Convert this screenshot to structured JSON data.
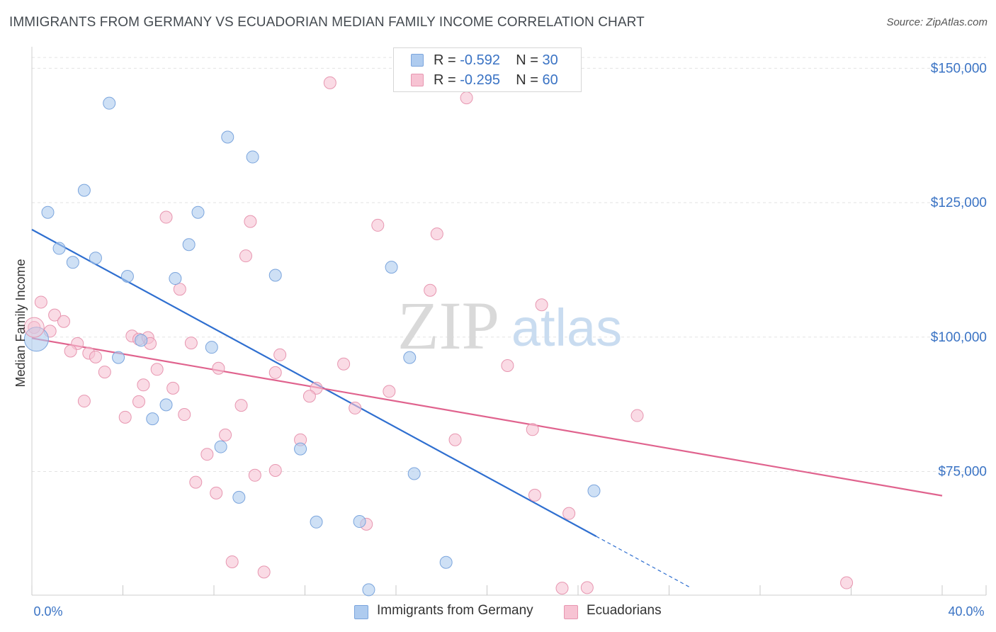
{
  "title": "IMMIGRANTS FROM GERMANY VS ECUADORIAN MEDIAN FAMILY INCOME CORRELATION CHART",
  "source": "Source: ZipAtlas.com",
  "watermark": {
    "zip": "ZIP",
    "atlas": "atlas"
  },
  "colors": {
    "blue_fill": "#aecbef",
    "blue_stroke": "#7ba5dd",
    "blue_line": "#2f6fd0",
    "pink_fill": "#f7c3d3",
    "pink_stroke": "#e796b0",
    "pink_line": "#e0638e",
    "axis_text": "#3a73c4",
    "grid": "#e3e3e3"
  },
  "legend": {
    "series": [
      {
        "r_label": "R = ",
        "r_value": "-0.592",
        "n_label": "N = ",
        "n_value": "30"
      },
      {
        "r_label": "R = ",
        "r_value": "-0.295",
        "n_label": "N = ",
        "n_value": "60"
      }
    ]
  },
  "chart_data": {
    "type": "scatter",
    "title": "IMMIGRANTS FROM GERMANY VS ECUADORIAN MEDIAN FAMILY INCOME CORRELATION CHART",
    "xlabel": "",
    "ylabel": "Median Family Income",
    "xlim": [
      0,
      40
    ],
    "ylim": [
      52000,
      154000
    ],
    "x_tick_labels": [
      "0.0%",
      "40.0%"
    ],
    "y_ticks": [
      75000,
      100000,
      125000,
      150000
    ],
    "y_tick_labels": [
      "$75,000",
      "$100,000",
      "$125,000",
      "$150,000"
    ],
    "legend_placement": "bottom-center",
    "series": [
      {
        "name": "Immigrants from Germany",
        "color": "blue",
        "r": -0.592,
        "n": 30,
        "trend": {
          "x0": 0,
          "y0": 120000,
          "x1": 28.9,
          "y1": 53500,
          "solid_until_x": 24.8
        },
        "points": [
          [
            3.4,
            143500
          ],
          [
            8.6,
            137200
          ],
          [
            9.7,
            133500
          ],
          [
            2.3,
            127300
          ],
          [
            0.7,
            123200
          ],
          [
            7.3,
            123200
          ],
          [
            6.9,
            117200
          ],
          [
            1.2,
            116500
          ],
          [
            2.8,
            114700
          ],
          [
            1.8,
            113900
          ],
          [
            15.8,
            113000
          ],
          [
            4.2,
            111300
          ],
          [
            6.3,
            110900
          ],
          [
            10.7,
            111500
          ],
          [
            4.8,
            99400
          ],
          [
            7.9,
            98100
          ],
          [
            3.8,
            96200
          ],
          [
            16.6,
            96200
          ],
          [
            0.2,
            99600
          ],
          [
            5.9,
            87400
          ],
          [
            5.3,
            84800
          ],
          [
            8.3,
            79600
          ],
          [
            11.8,
            79200
          ],
          [
            16.8,
            74600
          ],
          [
            24.7,
            71400
          ],
          [
            9.1,
            70200
          ],
          [
            12.5,
            65600
          ],
          [
            14.4,
            65700
          ],
          [
            18.2,
            58100
          ],
          [
            14.8,
            53000
          ]
        ]
      },
      {
        "name": "Ecuadorians",
        "color": "pink",
        "r": -0.295,
        "n": 60,
        "trend": {
          "x0": 0,
          "y0": 99800,
          "x1": 40,
          "y1": 70500
        },
        "points": [
          [
            13.1,
            147300
          ],
          [
            19.1,
            144500
          ],
          [
            5.9,
            122300
          ],
          [
            9.6,
            121500
          ],
          [
            15.2,
            120800
          ],
          [
            17.8,
            119200
          ],
          [
            9.4,
            115100
          ],
          [
            6.5,
            108900
          ],
          [
            17.5,
            108700
          ],
          [
            0.4,
            106500
          ],
          [
            22.4,
            106000
          ],
          [
            1.0,
            104100
          ],
          [
            1.4,
            102900
          ],
          [
            0.1,
            101800
          ],
          [
            0.8,
            101100
          ],
          [
            4.4,
            100200
          ],
          [
            4.7,
            99600
          ],
          [
            5.1,
            99900
          ],
          [
            2.0,
            98800
          ],
          [
            5.2,
            98800
          ],
          [
            7.0,
            98900
          ],
          [
            1.7,
            97400
          ],
          [
            2.5,
            97000
          ],
          [
            2.8,
            96300
          ],
          [
            10.9,
            96700
          ],
          [
            8.2,
            94200
          ],
          [
            13.7,
            95000
          ],
          [
            20.9,
            94700
          ],
          [
            5.5,
            94000
          ],
          [
            3.2,
            93500
          ],
          [
            10.7,
            93400
          ],
          [
            4.9,
            91100
          ],
          [
            6.2,
            90500
          ],
          [
            12.5,
            90500
          ],
          [
            15.7,
            89900
          ],
          [
            12.2,
            89000
          ],
          [
            2.3,
            88100
          ],
          [
            4.7,
            88000
          ],
          [
            9.2,
            87300
          ],
          [
            14.2,
            86800
          ],
          [
            6.7,
            85600
          ],
          [
            4.1,
            85100
          ],
          [
            26.6,
            85400
          ],
          [
            22.0,
            82800
          ],
          [
            8.5,
            81800
          ],
          [
            11.8,
            80900
          ],
          [
            18.6,
            80900
          ],
          [
            7.7,
            78200
          ],
          [
            10.7,
            75200
          ],
          [
            9.8,
            74300
          ],
          [
            7.2,
            73000
          ],
          [
            8.1,
            71000
          ],
          [
            22.1,
            70600
          ],
          [
            23.6,
            67200
          ],
          [
            14.7,
            65200
          ],
          [
            8.8,
            58200
          ],
          [
            10.2,
            56300
          ],
          [
            23.3,
            53300
          ],
          [
            24.4,
            53400
          ],
          [
            35.8,
            54300
          ]
        ]
      }
    ]
  },
  "bottom_legend": [
    "Immigrants from Germany",
    "Ecuadorians"
  ]
}
